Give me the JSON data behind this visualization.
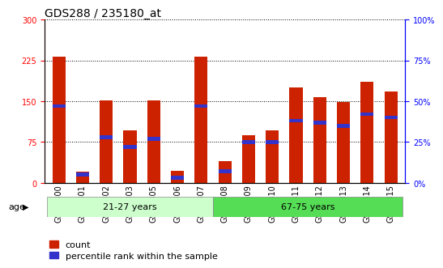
{
  "title": "GDS288 / 235180_at",
  "samples": [
    "GSM5300",
    "GSM5301",
    "GSM5302",
    "GSM5303",
    "GSM5305",
    "GSM5306",
    "GSM5307",
    "GSM5308",
    "GSM5309",
    "GSM5310",
    "GSM5311",
    "GSM5312",
    "GSM5313",
    "GSM5314",
    "GSM5315"
  ],
  "counts": [
    232,
    20,
    152,
    97,
    152,
    22,
    232,
    40,
    87,
    97,
    175,
    157,
    148,
    185,
    168
  ],
  "percentiles": [
    47,
    5,
    28,
    22,
    27,
    3,
    47,
    7,
    25,
    25,
    38,
    37,
    35,
    42,
    40
  ],
  "ylim_left": [
    0,
    300
  ],
  "ylim_right": [
    0,
    100
  ],
  "yticks_left": [
    0,
    75,
    150,
    225,
    300
  ],
  "yticks_right": [
    0,
    25,
    50,
    75,
    100
  ],
  "group1_label": "21-27 years",
  "group2_label": "67-75 years",
  "group1_count": 7,
  "age_label": "age",
  "bar_color_red": "#cc2200",
  "bar_color_blue": "#3333cc",
  "group1_bg": "#ccffcc",
  "group2_bg": "#55dd55",
  "title_fontsize": 10,
  "tick_fontsize": 7,
  "label_fontsize": 8,
  "legend_fontsize": 8,
  "bar_width": 0.55
}
